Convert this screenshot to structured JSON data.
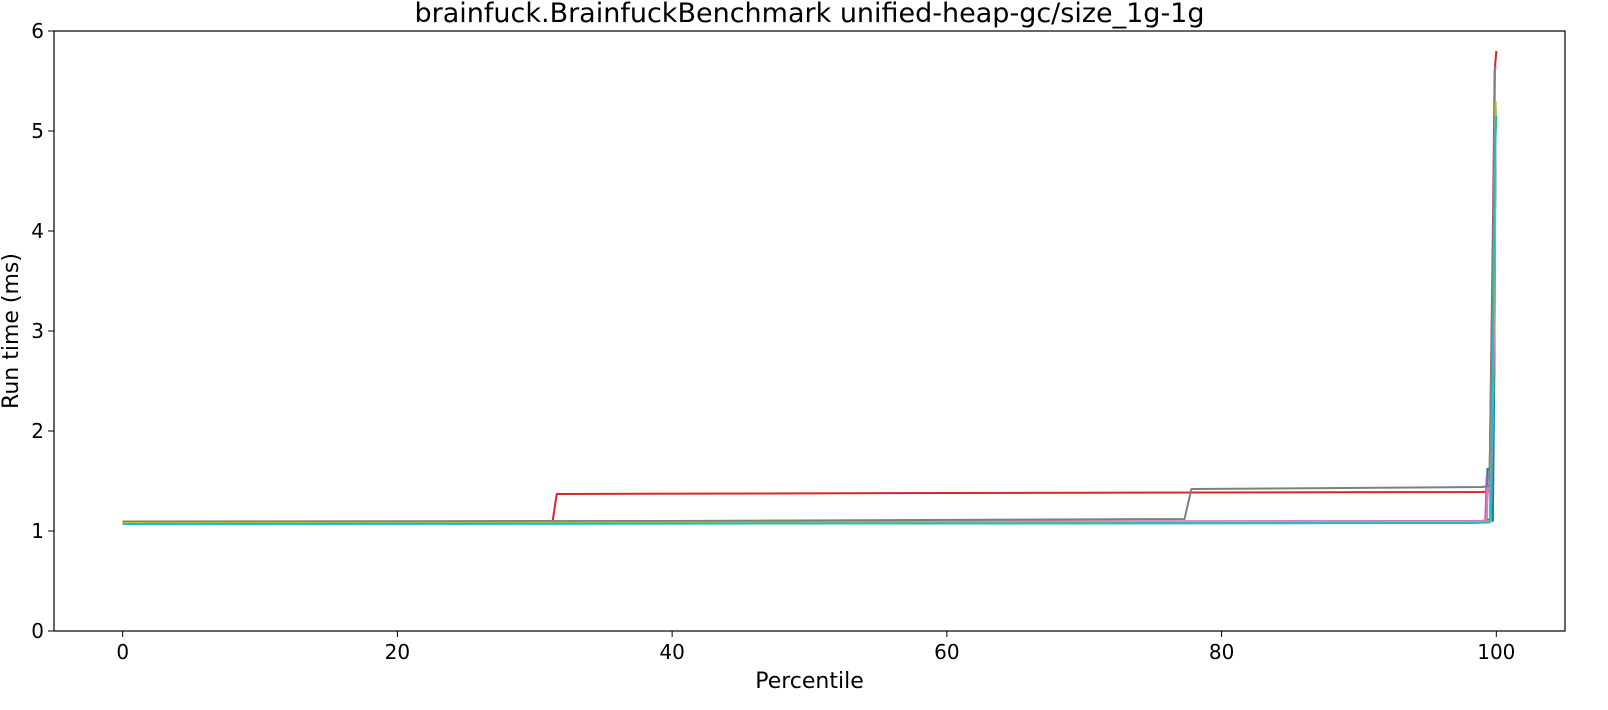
{
  "chart_data": {
    "type": "line",
    "title": "brainfuck.BrainfuckBenchmark unified-heap-gc/size_1g-1g",
    "xlabel": "Percentile",
    "ylabel": "Run time (ms)",
    "xlim": [
      -5,
      105
    ],
    "ylim": [
      0,
      6
    ],
    "x_ticks": [
      0,
      20,
      40,
      60,
      80,
      100
    ],
    "y_ticks": [
      0,
      1,
      2,
      3,
      4,
      5,
      6
    ],
    "grid": false,
    "legend": "none",
    "series": [
      {
        "color": "#1f77b4",
        "points": [
          [
            0,
            1.07
          ],
          [
            50,
            1.075
          ],
          [
            98,
            1.08
          ],
          [
            99.3,
            1.09
          ],
          [
            99.35,
            1.62
          ],
          [
            99.7,
            1.62
          ],
          [
            99.75,
            1.1
          ],
          [
            99.85,
            2.5
          ],
          [
            99.92,
            4.5
          ],
          [
            99.95,
            5.12
          ]
        ]
      },
      {
        "color": "#ff7f0e",
        "points": [
          [
            0,
            1.075
          ],
          [
            50,
            1.08
          ],
          [
            99,
            1.085
          ],
          [
            99.55,
            1.1
          ],
          [
            99.85,
            2.8
          ],
          [
            99.95,
            5.15
          ]
        ]
      },
      {
        "color": "#2ca02c",
        "points": [
          [
            0,
            1.08
          ],
          [
            50,
            1.085
          ],
          [
            99,
            1.09
          ],
          [
            99.55,
            1.1
          ],
          [
            99.85,
            2.6
          ],
          [
            99.95,
            5.2
          ]
        ]
      },
      {
        "color": "#d62728",
        "points": [
          [
            0,
            1.08
          ],
          [
            31.3,
            1.1
          ],
          [
            31.6,
            1.37
          ],
          [
            60,
            1.38
          ],
          [
            99,
            1.39
          ],
          [
            99.5,
            1.4
          ],
          [
            99.75,
            4.0
          ],
          [
            99.88,
            5.6
          ],
          [
            100,
            5.8
          ]
        ]
      },
      {
        "color": "#9467bd",
        "points": [
          [
            0,
            1.085
          ],
          [
            50,
            1.09
          ],
          [
            99.2,
            1.1
          ],
          [
            99.3,
            1.55
          ],
          [
            99.5,
            1.55
          ],
          [
            99.55,
            1.1
          ],
          [
            99.85,
            3.0
          ],
          [
            99.95,
            5.18
          ]
        ]
      },
      {
        "color": "#8c564b",
        "points": [
          [
            0,
            1.085
          ],
          [
            50,
            1.09
          ],
          [
            99,
            1.1
          ],
          [
            99.6,
            1.12
          ],
          [
            99.85,
            3.2
          ],
          [
            99.95,
            5.22
          ]
        ]
      },
      {
        "color": "#e377c2",
        "points": [
          [
            0,
            1.09
          ],
          [
            50,
            1.095
          ],
          [
            99,
            1.1
          ],
          [
            99.3,
            1.12
          ],
          [
            99.35,
            1.45
          ],
          [
            99.5,
            1.45
          ],
          [
            99.6,
            1.12
          ],
          [
            99.85,
            3.0
          ],
          [
            99.95,
            5.25
          ]
        ]
      },
      {
        "color": "#7f7f7f",
        "points": [
          [
            0,
            1.095
          ],
          [
            40,
            1.1
          ],
          [
            77.3,
            1.12
          ],
          [
            77.8,
            1.42
          ],
          [
            99,
            1.44
          ],
          [
            99.5,
            1.45
          ],
          [
            99.8,
            4.2
          ],
          [
            99.9,
            5.6
          ],
          [
            99.95,
            5.65
          ]
        ]
      },
      {
        "color": "#bcbd22",
        "points": [
          [
            0,
            1.08
          ],
          [
            50,
            1.085
          ],
          [
            99,
            1.09
          ],
          [
            99.55,
            1.1
          ],
          [
            99.85,
            3.5
          ],
          [
            99.95,
            5.3
          ]
        ]
      },
      {
        "color": "#17becf",
        "points": [
          [
            0,
            1.07
          ],
          [
            50,
            1.075
          ],
          [
            98,
            1.08
          ],
          [
            99.5,
            1.085
          ],
          [
            99.6,
            1.1
          ],
          [
            99.8,
            3.5
          ],
          [
            99.9,
            4.8
          ],
          [
            100,
            5.15
          ]
        ]
      }
    ]
  }
}
